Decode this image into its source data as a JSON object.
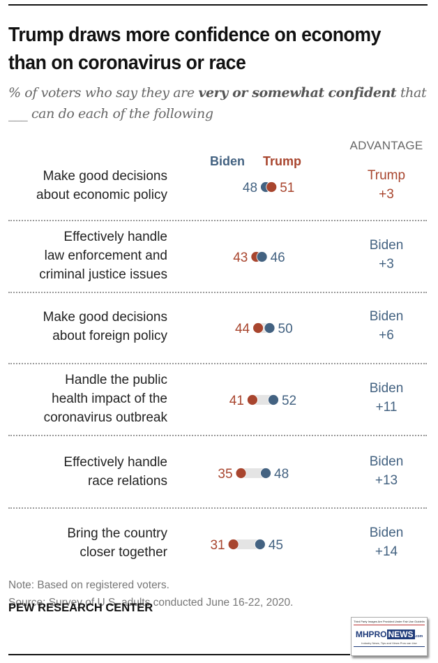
{
  "chart_data": {
    "type": "dot-plot",
    "title": "Trump draws more confidence on economy than on coronavirus or race",
    "subtitle_parts": {
      "pre": "% of voters who say they are ",
      "bold1": "very or somewhat",
      "bold2": "confident",
      "post": " that ___ can do each of the following"
    },
    "series": [
      {
        "name": "Biden",
        "color": "#436281"
      },
      {
        "name": "Trump",
        "color": "#a8452e"
      }
    ],
    "advantage_header": "ADVANTAGE",
    "categories": [
      "Make good decisions about economic policy",
      "Effectively handle law enforcement and criminal justice issues",
      "Make good decisions about foreign policy",
      "Handle the public health impact of the coronavirus outbreak",
      "Effectively handle race relations",
      "Bring the country closer together"
    ],
    "rows": [
      {
        "label_lines": [
          "Make good decisions",
          "about economic policy"
        ],
        "biden": 48,
        "trump": 51,
        "adv_name": "Trump",
        "adv_value": "+3"
      },
      {
        "label_lines": [
          "Effectively handle",
          "law enforcement and",
          "criminal justice issues"
        ],
        "biden": 46,
        "trump": 43,
        "adv_name": "Biden",
        "adv_value": "+3"
      },
      {
        "label_lines": [
          "Make good decisions",
          "about foreign policy"
        ],
        "biden": 50,
        "trump": 44,
        "adv_name": "Biden",
        "adv_value": "+6"
      },
      {
        "label_lines": [
          "Handle the public",
          "health impact of the",
          "coronavirus outbreak"
        ],
        "biden": 52,
        "trump": 41,
        "adv_name": "Biden",
        "adv_value": "+11"
      },
      {
        "label_lines": [
          "Effectively handle",
          "race relations"
        ],
        "biden": 48,
        "trump": 35,
        "adv_name": "Biden",
        "adv_value": "+13"
      },
      {
        "label_lines": [
          "Bring the country",
          "closer together"
        ],
        "biden": 45,
        "trump": 31,
        "adv_name": "Biden",
        "adv_value": "+14"
      }
    ]
  },
  "notes": {
    "note": "Note: Based on registered voters.",
    "source": "Source: Survey of U.S. adults conducted June 16-22, 2020."
  },
  "brand": "PEW RESEARCH CENTER",
  "watermark": {
    "top_text": "Third Party Images Are Provided Under Fair Use Guidelines.",
    "logo_mh": "MHPRO",
    "logo_news": "NEWS",
    "logo_com": ".com",
    "tagline": "Industry News, Tips and Views Pros can Use"
  }
}
